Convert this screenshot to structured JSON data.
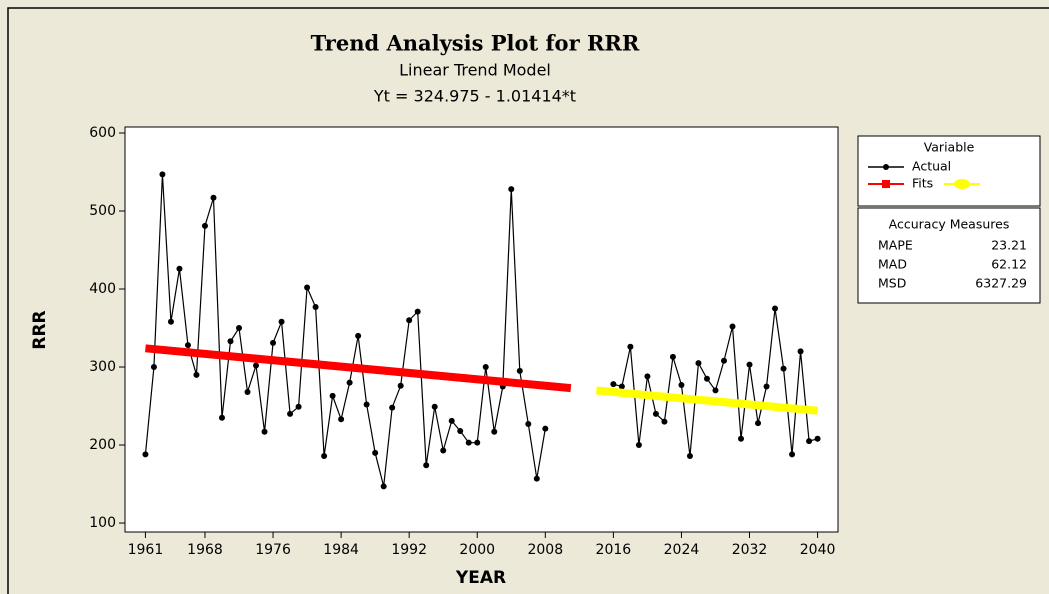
{
  "chart_data": {
    "type": "line",
    "title": "Trend Analysis Plot for RRR",
    "subtitle": "Linear Trend Model",
    "equation": "Yt = 324.975 - 1.01414*t",
    "x_label": "YEAR",
    "y_label": "RRR",
    "legend_title": "Variable",
    "xlim": [
      1958.6,
      2042.4
    ],
    "ylim": [
      88.5,
      607.7
    ],
    "xticks": [
      1961,
      1968,
      1976,
      1984,
      1992,
      2000,
      2008,
      2016,
      2024,
      2032,
      2040
    ],
    "yticks": [
      100,
      200,
      300,
      400,
      500,
      600
    ],
    "series": [
      {
        "name": "Actual",
        "color": "#000000",
        "marker": "dot",
        "x": [
          1961,
          1962,
          1963,
          1964,
          1965,
          1966,
          1967,
          1968,
          1969,
          1970,
          1971,
          1972,
          1973,
          1974,
          1975,
          1976,
          1977,
          1978,
          1979,
          1980,
          1981,
          1982,
          1983,
          1984,
          1985,
          1986,
          1987,
          1988,
          1989,
          1990,
          1991,
          1992,
          1993,
          1994,
          1995,
          1996,
          1997,
          1998,
          1999,
          2000,
          2001,
          2002,
          2003,
          2004,
          2005,
          2006,
          2007,
          2008,
          2009,
          2010,
          2011,
          2012,
          2013,
          2014,
          2015,
          2016,
          2017,
          2018,
          2019,
          2020,
          2021,
          2022,
          2023,
          2024,
          2025,
          2026,
          2027,
          2028,
          2029,
          2030,
          2031,
          2032,
          2033,
          2034,
          2035,
          2036,
          2037,
          2038,
          2039,
          2040
        ],
        "values": [
          188,
          300,
          547,
          358,
          426,
          328,
          290,
          481,
          517,
          235,
          333,
          350,
          268,
          302,
          217,
          331,
          358,
          240,
          249,
          402,
          377,
          186,
          263,
          233,
          280,
          340,
          252,
          190,
          147,
          248,
          276,
          360,
          371,
          174,
          249,
          193,
          231,
          218,
          203,
          203,
          300,
          217,
          275,
          528,
          295,
          227,
          157,
          221,
          null,
          null,
          null,
          null,
          null,
          null,
          null,
          278,
          275,
          326,
          200,
          288,
          240,
          230,
          313,
          277,
          186,
          305,
          285,
          270,
          308,
          352,
          208,
          303,
          228,
          275,
          375,
          298,
          188,
          320,
          205,
          208
        ]
      },
      {
        "name": "Fits",
        "color": "#ff0000",
        "marker": "square",
        "x": [
          1961,
          2011
        ],
        "values": [
          324,
          273
        ]
      },
      {
        "color": "#ffff00",
        "marker": "blob",
        "x": [
          2014,
          2040
        ],
        "values": [
          270,
          244
        ]
      }
    ],
    "accuracy_title": "Accuracy Measures",
    "accuracy": [
      {
        "label": "MAPE",
        "value": "23.21"
      },
      {
        "label": "MAD",
        "value": "62.12"
      },
      {
        "label": "MSD",
        "value": "6327.29"
      }
    ]
  }
}
